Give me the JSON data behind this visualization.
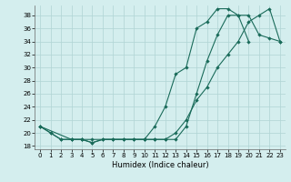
{
  "xlabel": "Humidex (Indice chaleur)",
  "ylabel": "",
  "bg_color": "#d4eeee",
  "line_color": "#1a6b5a",
  "grid_color": "#b0d4d4",
  "xlim": [
    -0.5,
    23.5
  ],
  "ylim": [
    17.5,
    39.5
  ],
  "xticks": [
    0,
    1,
    2,
    3,
    4,
    5,
    6,
    7,
    8,
    9,
    10,
    11,
    12,
    13,
    14,
    15,
    16,
    17,
    18,
    19,
    20,
    21,
    22,
    23
  ],
  "yticks": [
    18,
    20,
    22,
    24,
    26,
    28,
    30,
    32,
    34,
    36,
    38
  ],
  "line1_x": [
    0,
    1,
    2,
    3,
    4,
    5,
    6,
    7,
    8,
    9,
    10,
    11,
    12,
    13,
    14,
    15,
    16,
    17,
    18,
    19,
    20,
    21,
    22,
    23
  ],
  "line1_y": [
    21,
    20,
    19,
    19,
    19,
    18.5,
    19,
    19,
    19,
    19,
    19,
    21,
    24,
    29,
    30,
    36,
    37,
    39,
    39,
    38,
    38,
    35,
    34.5,
    34
  ],
  "line2_x": [
    0,
    1,
    2,
    3,
    4,
    5,
    6,
    7,
    8,
    9,
    10,
    11,
    12,
    13,
    14,
    15,
    16,
    17,
    18,
    19,
    20
  ],
  "line2_y": [
    21,
    20,
    19,
    19,
    19,
    18.5,
    19,
    19,
    19,
    19,
    19,
    19,
    19,
    19,
    21,
    26,
    31,
    35,
    38,
    38,
    34
  ],
  "line3_x": [
    0,
    3,
    4,
    5,
    10,
    11,
    12,
    13,
    14,
    15,
    16,
    17,
    18,
    19,
    20,
    21,
    22,
    23
  ],
  "line3_y": [
    21,
    19,
    19,
    19,
    19,
    19,
    19,
    20,
    22,
    25,
    27,
    30,
    32,
    34,
    37,
    38,
    39,
    34
  ]
}
